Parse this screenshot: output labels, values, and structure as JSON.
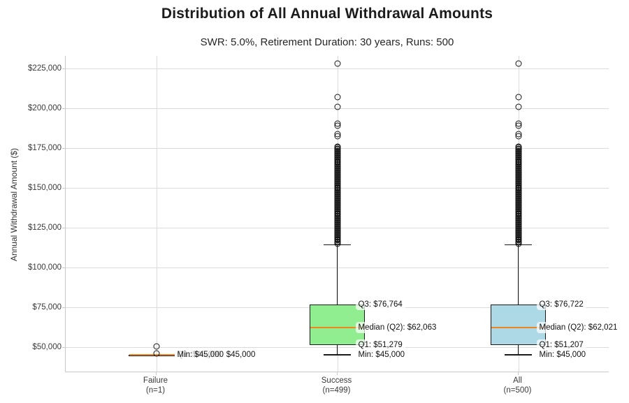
{
  "figure": {
    "title": "Distribution of All Annual Withdrawal Amounts",
    "subtitle": "SWR: 5.0%, Retirement Duration: 30 years, Runs: 500"
  },
  "chart_data": {
    "type": "box",
    "title": "Distribution of All Annual Withdrawal Amounts",
    "subtitle": "SWR: 5.0%, Retirement Duration: 30 years, Runs: 500",
    "ylabel": "Annual Withdrawal Amount ($)",
    "xlabel": "",
    "ylim": [
      34500,
      233000
    ],
    "grid": true,
    "legend": false,
    "yticks": [
      {
        "value": 50000,
        "label": "$50,000"
      },
      {
        "value": 75000,
        "label": "$75,000"
      },
      {
        "value": 100000,
        "label": "$100,000"
      },
      {
        "value": 125000,
        "label": "$125,000"
      },
      {
        "value": 150000,
        "label": "$150,000"
      },
      {
        "value": 175000,
        "label": "$175,000"
      },
      {
        "value": 200000,
        "label": "$200,000"
      },
      {
        "value": 225000,
        "label": "$225,000"
      }
    ],
    "categories": [
      {
        "label": "Failure",
        "sublabel": "(n=1)"
      },
      {
        "label": "Success",
        "sublabel": "(n=499)"
      },
      {
        "label": "All",
        "sublabel": "(n=500)"
      }
    ],
    "boxes": [
      {
        "name": "Failure",
        "fill": "#F08080",
        "min": 45000,
        "q1": 45000,
        "median": 45000,
        "q3": 45000,
        "whisker_high": 45000,
        "outliers": [
          50300,
          45900
        ],
        "outlier_band": null,
        "annotations": [
          {
            "text": "Q3: $45,000",
            "value": 45000
          },
          {
            "text": "Median (Q2): $45,000",
            "value": 45000
          },
          {
            "text": "Q1: $45,000",
            "value": 45000
          },
          {
            "text": "Min: $45,000",
            "value": 45000
          }
        ]
      },
      {
        "name": "Success",
        "fill": "#90EE90",
        "min": 45000,
        "q1": 51279,
        "median": 62063,
        "q3": 76764,
        "whisker_high": 114300,
        "outliers": [
          182500,
          183600,
          189000,
          190200,
          200900,
          206900,
          228100
        ],
        "outlier_band": {
          "from": 114900,
          "to": 176000,
          "step": 650
        },
        "annotations": [
          {
            "text": "Q3: $76,764",
            "value": 76764
          },
          {
            "text": "Median (Q2): $62,063",
            "value": 62063
          },
          {
            "text": "Q1: $51,279",
            "value": 51279
          },
          {
            "text": "Min: $45,000",
            "value": 45000
          }
        ]
      },
      {
        "name": "All",
        "fill": "#ADD8E6",
        "min": 45000,
        "q1": 51207,
        "median": 62021,
        "q3": 76722,
        "whisker_high": 114300,
        "outliers": [
          182500,
          183600,
          189000,
          190200,
          200900,
          206900,
          228100
        ],
        "outlier_band": {
          "from": 114900,
          "to": 176000,
          "step": 650
        },
        "annotations": [
          {
            "text": "Q3: $76,722",
            "value": 76722
          },
          {
            "text": "Median (Q2): $62,021",
            "value": 62021
          },
          {
            "text": "Q1: $51,207",
            "value": 51207
          },
          {
            "text": "Min: $45,000",
            "value": 45000
          }
        ]
      }
    ],
    "colors": {
      "median_line": "#ee8722",
      "box_edge": "#1a1a1a",
      "gridline": "#dcdcdc",
      "spine": "#c9c9c9",
      "flier_edge": "#141414"
    }
  }
}
